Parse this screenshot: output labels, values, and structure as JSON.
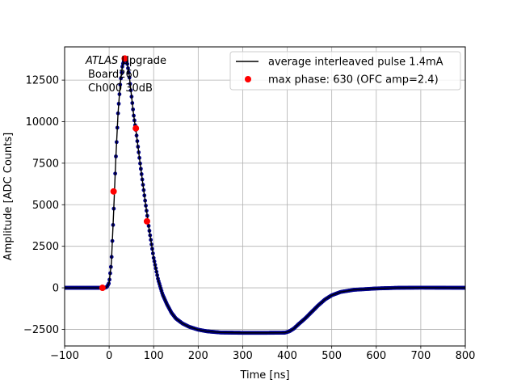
{
  "chart_data": {
    "type": "line",
    "title": "",
    "xlabel": "Time [ns]",
    "ylabel": "Amplitude [ADC Counts]",
    "xlim": [
      -100,
      800
    ],
    "ylim": [
      -3500,
      14500
    ],
    "xticks": [
      -100,
      0,
      100,
      200,
      300,
      400,
      500,
      600,
      700,
      800
    ],
    "xtick_labels": [
      "−100",
      "0",
      "100",
      "200",
      "300",
      "400",
      "500",
      "600",
      "700",
      "800"
    ],
    "yticks": [
      -2500,
      0,
      2500,
      5000,
      7500,
      10000,
      12500
    ],
    "ytick_labels": [
      "−2500",
      "0",
      "2500",
      "5000",
      "7500",
      "10000",
      "12500"
    ],
    "grid": true,
    "legend_position": "top-right",
    "annotation": {
      "atlas": "ATLAS",
      "upgrade": " Upgrade",
      "line2": "Board260",
      "line3": "Ch000 30dB"
    },
    "series": [
      {
        "name": "average interleaved pulse 1.4mA",
        "kind": "line",
        "color": "#000000",
        "marker_color": "#00008b",
        "points": [
          [
            -100,
            0
          ],
          [
            -20,
            0
          ],
          [
            -10,
            0
          ],
          [
            -5,
            50
          ],
          [
            0,
            300
          ],
          [
            5,
            1500
          ],
          [
            10,
            4500
          ],
          [
            15,
            7800
          ],
          [
            20,
            10500
          ],
          [
            25,
            12300
          ],
          [
            30,
            13400
          ],
          [
            35,
            13800
          ],
          [
            40,
            13600
          ],
          [
            45,
            12800
          ],
          [
            50,
            11600
          ],
          [
            55,
            10400
          ],
          [
            60,
            9500
          ],
          [
            70,
            7400
          ],
          [
            80,
            5400
          ],
          [
            90,
            3500
          ],
          [
            100,
            1800
          ],
          [
            110,
            500
          ],
          [
            120,
            -400
          ],
          [
            130,
            -1000
          ],
          [
            140,
            -1500
          ],
          [
            150,
            -1850
          ],
          [
            165,
            -2150
          ],
          [
            180,
            -2350
          ],
          [
            200,
            -2520
          ],
          [
            220,
            -2620
          ],
          [
            250,
            -2690
          ],
          [
            300,
            -2710
          ],
          [
            350,
            -2710
          ],
          [
            395,
            -2700
          ],
          [
            405,
            -2620
          ],
          [
            415,
            -2450
          ],
          [
            425,
            -2200
          ],
          [
            440,
            -1850
          ],
          [
            455,
            -1450
          ],
          [
            470,
            -1050
          ],
          [
            485,
            -700
          ],
          [
            500,
            -450
          ],
          [
            520,
            -250
          ],
          [
            550,
            -120
          ],
          [
            600,
            -40
          ],
          [
            650,
            0
          ],
          [
            700,
            10
          ],
          [
            750,
            5
          ],
          [
            800,
            0
          ]
        ]
      },
      {
        "name": "max phase: 630 (OFC amp=2.4)",
        "kind": "scatter",
        "color": "#ff0000",
        "points": [
          [
            -15,
            0
          ],
          [
            10,
            5800
          ],
          [
            35,
            13800
          ],
          [
            60,
            9600
          ],
          [
            85,
            4000
          ]
        ]
      }
    ]
  }
}
